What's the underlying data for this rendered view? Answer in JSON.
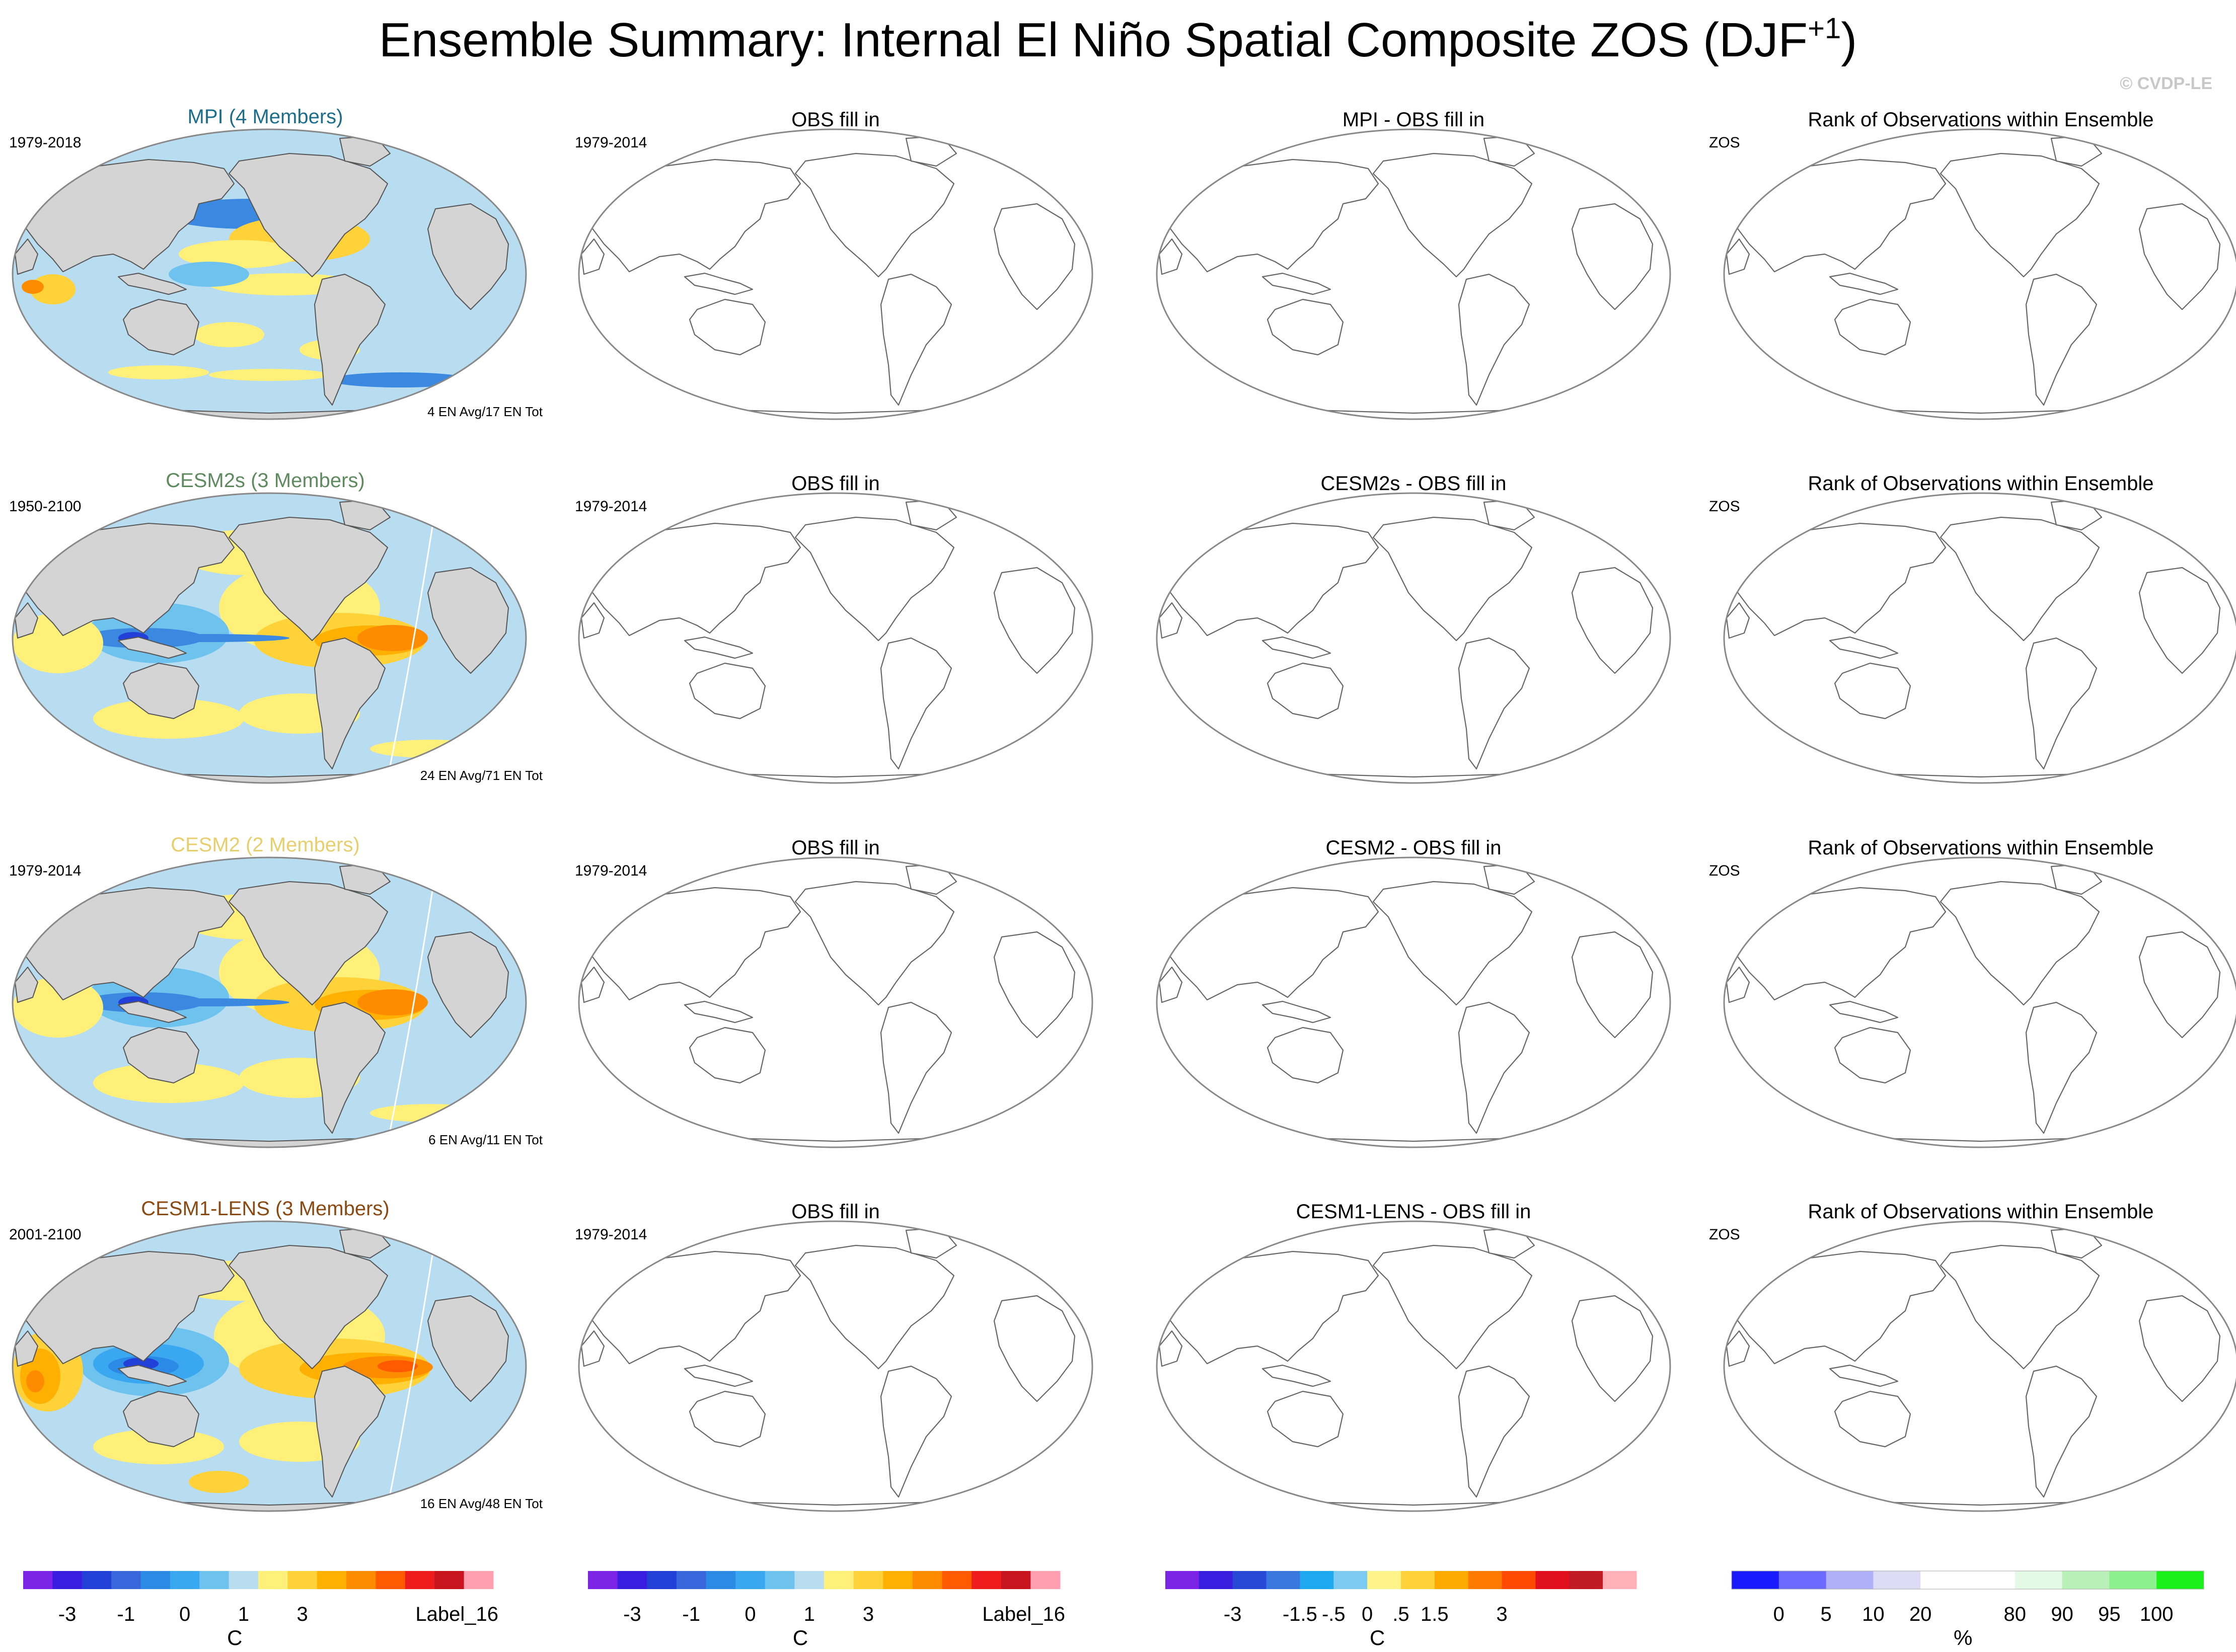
{
  "title": "Ensemble Summary: Internal El Niño Spatial Composite ZOS (DJF",
  "title_superscript": "+1",
  "title_close": ")",
  "copyright": "© CVDP-LE",
  "chart_data": {
    "type": "map-panel-grid",
    "variable": "ZOS",
    "season": "DJF+1",
    "rows": [
      {
        "model": {
          "title": "MPI (4 Members)",
          "title_color": "#1c6e8c",
          "years": "1979-2018",
          "count": "4 EN Avg/17 EN Tot",
          "style": "mpi"
        },
        "obs": {
          "title": "OBS fill in",
          "years": "1979-2014"
        },
        "diff": {
          "title": "MPI - OBS fill in"
        },
        "rank": {
          "title": "Rank of Observations within Ensemble",
          "label": "ZOS"
        }
      },
      {
        "model": {
          "title": "CESM2s (3 Members)",
          "title_color": "#5f8a5f",
          "years": "1950-2100",
          "count": "24 EN Avg/71 EN Tot",
          "style": "cesm"
        },
        "obs": {
          "title": "OBS fill in",
          "years": "1979-2014"
        },
        "diff": {
          "title": "CESM2s - OBS fill in"
        },
        "rank": {
          "title": "Rank of Observations within Ensemble",
          "label": "ZOS"
        }
      },
      {
        "model": {
          "title": "CESM2 (2 Members)",
          "title_color": "#e8cf6e",
          "years": "1979-2014",
          "count": "6 EN Avg/11 EN Tot",
          "style": "cesm"
        },
        "obs": {
          "title": "OBS fill in",
          "years": "1979-2014"
        },
        "diff": {
          "title": "CESM2 - OBS fill in"
        },
        "rank": {
          "title": "Rank of Observations within Ensemble",
          "label": "ZOS"
        }
      },
      {
        "model": {
          "title": "CESM1-LENS (3 Members)",
          "title_color": "#8a4a12",
          "years": "2001-2100",
          "count": "16 EN Avg/48 EN Tot",
          "style": "lens"
        },
        "obs": {
          "title": "OBS fill in",
          "years": "1979-2014"
        },
        "diff": {
          "title": "CESM1-LENS - OBS fill in"
        },
        "rank": {
          "title": "Rank of Observations within Ensemble",
          "label": "ZOS"
        }
      }
    ],
    "colorbars": [
      {
        "name": "model-colorbar",
        "units": "C",
        "colors": [
          "#7b24e6",
          "#3a1ee0",
          "#2240d8",
          "#3a66dc",
          "#2a8ae6",
          "#3aa8f0",
          "#6ec2ee",
          "#b8dcf0",
          "#fff07a",
          "#ffd23a",
          "#ffb000",
          "#ff8c00",
          "#ff5a00",
          "#ee1c1c",
          "#c8141e",
          "#ff9fb0"
        ],
        "ticks": [
          {
            "boundary": 1.5,
            "label": "-3"
          },
          {
            "boundary": 3.5,
            "label": "-1"
          },
          {
            "boundary": 5.5,
            "label": "0"
          },
          {
            "boundary": 7.5,
            "label": "1"
          },
          {
            "boundary": 9.5,
            "label": "3"
          }
        ],
        "end_label": "Label_16"
      },
      {
        "name": "obs-colorbar",
        "units": "C",
        "colors": [
          "#7b24e6",
          "#3a1ee0",
          "#2240d8",
          "#3a66dc",
          "#2a8ae6",
          "#3aa8f0",
          "#6ec2ee",
          "#b8dcf0",
          "#fff07a",
          "#ffd23a",
          "#ffb000",
          "#ff8c00",
          "#ff5a00",
          "#ee1c1c",
          "#c8141e",
          "#ff9fb0"
        ],
        "ticks": [
          {
            "boundary": 1.5,
            "label": "-3"
          },
          {
            "boundary": 3.5,
            "label": "-1"
          },
          {
            "boundary": 5.5,
            "label": "0"
          },
          {
            "boundary": 7.5,
            "label": "1"
          },
          {
            "boundary": 9.5,
            "label": "3"
          }
        ],
        "end_label": "Label_16"
      },
      {
        "name": "diff-colorbar",
        "units": "C",
        "colors": [
          "#7b24e6",
          "#3a1ee0",
          "#2848d8",
          "#3a78e0",
          "#1ea8f0",
          "#7ccaf0",
          "#fff48a",
          "#ffd23a",
          "#ffaa00",
          "#ff7a00",
          "#ff4a00",
          "#e0101e",
          "#c01a24",
          "#ffb0b8"
        ],
        "ticks": [
          {
            "boundary": 2,
            "label": "-3"
          },
          {
            "boundary": 4,
            "label": "-1.5"
          },
          {
            "boundary": 5,
            "label": "-.5"
          },
          {
            "boundary": 6,
            "label": "0"
          },
          {
            "boundary": 7,
            "label": ".5"
          },
          {
            "boundary": 8,
            "label": "1.5"
          },
          {
            "boundary": 10,
            "label": "3"
          }
        ],
        "end_label": ""
      },
      {
        "name": "rank-colorbar",
        "units": "%",
        "colors": [
          "#1a1aff",
          "#6a6aff",
          "#b0b0f8",
          "#dcdcf6",
          "#ffffff",
          "#ffffff",
          "#e4fae4",
          "#b8f0b8",
          "#8cf08c",
          "#1af01a"
        ],
        "ticks": [
          {
            "boundary": 1,
            "label": "0"
          },
          {
            "boundary": 2,
            "label": "5"
          },
          {
            "boundary": 3,
            "label": "10"
          },
          {
            "boundary": 4,
            "label": "20"
          },
          {
            "boundary": 6,
            "label": "80"
          },
          {
            "boundary": 7,
            "label": "90"
          },
          {
            "boundary": 8,
            "label": "95"
          },
          {
            "boundary": 9,
            "label": "100"
          }
        ],
        "end_label": ""
      }
    ]
  }
}
